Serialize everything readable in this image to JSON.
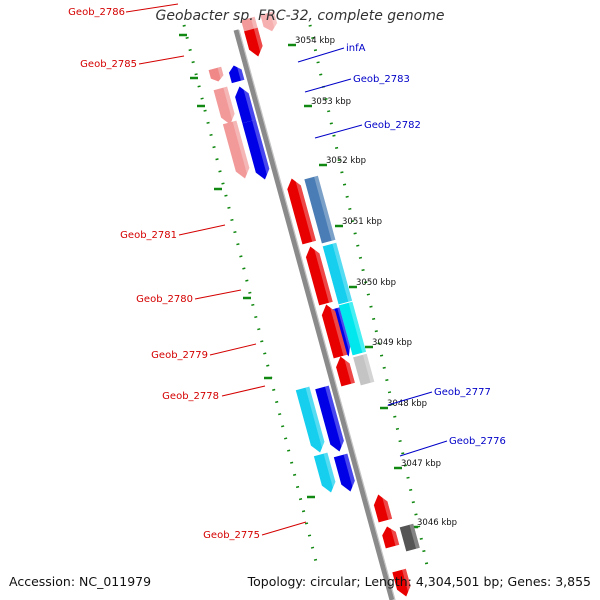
{
  "title": "Geobacter sp. FRC-32, complete genome",
  "footer": {
    "accession": "Accession: NC_011979",
    "summary": "Topology: circular; Length: 4,304,501 bp; Genes: 3,855"
  },
  "colors": {
    "backbone": "#8a8a8a",
    "label_left": "#d40000",
    "label_right": "#0000c8",
    "ruler_tick": "#118811"
  },
  "ruler": [
    "3054 kbp",
    "3053 kbp",
    "3052 kbp",
    "3051 kbp",
    "3050 kbp",
    "3049 kbp",
    "3048 kbp",
    "3047 kbp",
    "3046 kbp"
  ],
  "gene_labels": {
    "left": [
      "Geob_2786",
      "Geob_2785",
      "Geob_2781",
      "Geob_2780",
      "Geob_2779",
      "Geob_2778",
      "Geob_2775"
    ],
    "right": [
      "infA",
      "Geob_2783",
      "Geob_2782",
      "Geob_2777",
      "Geob_2776"
    ]
  }
}
